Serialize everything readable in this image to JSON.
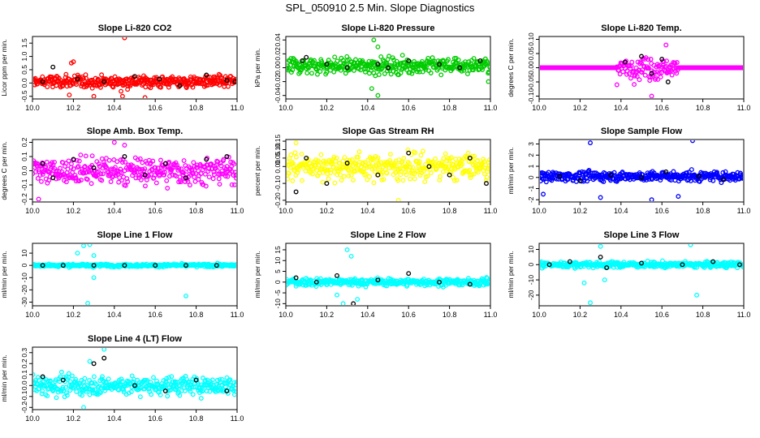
{
  "page": {
    "title": "SPL_050910  2.5 Min. Slope Diagnostics"
  },
  "chart_data": [
    {
      "type": "scatter",
      "title": "Slope Li-820 CO2",
      "ylabel": "Licor ppm per min.",
      "xlabel": "",
      "xlim": [
        10.0,
        11.0
      ],
      "ylim": [
        -0.6,
        1.75
      ],
      "xticks": [
        "10.0",
        "10.2",
        "10.4",
        "10.6",
        "10.8",
        "11.0"
      ],
      "yticks": [
        "-0.5",
        "0.0",
        "0.5",
        "1.0",
        "1.5"
      ],
      "ytick_values": [
        -0.5,
        0,
        0.5,
        1.0,
        1.5
      ],
      "color": "#ff0000",
      "spread": 0.25,
      "center": 0.05,
      "outliers": [
        [
          10.19,
          0.75
        ],
        [
          10.2,
          0.8
        ],
        [
          10.45,
          1.7
        ],
        [
          10.44,
          -0.5
        ],
        [
          10.55,
          -0.55
        ],
        [
          10.18,
          -0.45
        ],
        [
          10.3,
          -0.5
        ]
      ],
      "black_points": [
        [
          10.05,
          0.05
        ],
        [
          10.1,
          0.6
        ],
        [
          10.22,
          0.15
        ],
        [
          10.35,
          0.05
        ],
        [
          10.5,
          0.25
        ],
        [
          10.62,
          0.15
        ],
        [
          10.72,
          -0.1
        ],
        [
          10.85,
          0.3
        ],
        [
          10.95,
          0.1
        ],
        [
          10.99,
          0.05
        ]
      ]
    },
    {
      "type": "scatter",
      "title": "Slope Li-820 Pressure",
      "ylabel": "kPa per min.",
      "xlabel": "",
      "xlim": [
        10.0,
        11.0
      ],
      "ylim": [
        -0.045,
        0.045
      ],
      "xticks": [
        "10.0",
        "10.2",
        "10.4",
        "10.6",
        "10.8",
        "11.0"
      ],
      "yticks": [
        "-0.04",
        "-0.02",
        "0.00",
        "0.02",
        "0.04"
      ],
      "ytick_values": [
        -0.04,
        -0.02,
        0,
        0.02,
        0.04
      ],
      "color": "#00cc00",
      "spread": 0.012,
      "center": 0.003,
      "outliers": [
        [
          10.43,
          0.04
        ],
        [
          10.45,
          -0.04
        ],
        [
          10.45,
          0.03
        ],
        [
          10.42,
          -0.03
        ],
        [
          10.99,
          -0.02
        ]
      ],
      "black_points": [
        [
          10.08,
          0.01
        ],
        [
          10.1,
          0.015
        ],
        [
          10.2,
          0.005
        ],
        [
          10.3,
          0.0
        ],
        [
          10.45,
          0.005
        ],
        [
          10.5,
          0.0
        ],
        [
          10.6,
          0.01
        ],
        [
          10.75,
          0.005
        ],
        [
          10.85,
          0.0
        ],
        [
          10.95,
          0.01
        ]
      ]
    },
    {
      "type": "scatter",
      "title": "Slope Li-820 Temp.",
      "ylabel": "degrees C per min.",
      "xlabel": "",
      "xlim": [
        10.0,
        11.0
      ],
      "ylim": [
        -0.11,
        0.11
      ],
      "xticks": [
        "10.0",
        "10.2",
        "10.4",
        "10.6",
        "10.8",
        "11.0"
      ],
      "yticks": [
        "-0.10",
        "-0.05",
        "0.00",
        "0.05",
        "0.10"
      ],
      "ytick_values": [
        -0.1,
        -0.05,
        0,
        0.05,
        0.1
      ],
      "color": "#ff00ff",
      "spread": 0.0,
      "center": 0.0,
      "burst": [
        10.38,
        10.68,
        0.05
      ],
      "outliers": [
        [
          10.55,
          -0.1
        ],
        [
          10.62,
          0.08
        ],
        [
          10.38,
          -0.06
        ]
      ],
      "black_points": [
        [
          10.5,
          0.04
        ],
        [
          10.55,
          -0.02
        ],
        [
          10.6,
          0.03
        ],
        [
          10.63,
          -0.05
        ],
        [
          10.42,
          0.02
        ]
      ]
    },
    {
      "type": "scatter",
      "title": "Slope Amb. Box Temp.",
      "ylabel": "degrees C per min.",
      "xlabel": "",
      "xlim": [
        10.0,
        11.0
      ],
      "ylim": [
        -0.22,
        0.22
      ],
      "xticks": [
        "10.0",
        "10.2",
        "10.4",
        "10.6",
        "10.8",
        "11.0"
      ],
      "yticks": [
        "-0.2",
        "-0.1",
        "0.0",
        "0.1",
        "0.2"
      ],
      "ytick_values": [
        -0.2,
        -0.1,
        0,
        0.1,
        0.2
      ],
      "color": "#ff00ff",
      "spread": 0.1,
      "center": 0.0,
      "outliers": [
        [
          10.4,
          0.2
        ],
        [
          10.03,
          -0.2
        ],
        [
          10.45,
          0.18
        ]
      ],
      "black_points": [
        [
          10.05,
          0.05
        ],
        [
          10.1,
          -0.05
        ],
        [
          10.2,
          0.08
        ],
        [
          10.3,
          0.02
        ],
        [
          10.45,
          0.1
        ],
        [
          10.55,
          -0.03
        ],
        [
          10.65,
          0.05
        ],
        [
          10.75,
          -0.05
        ],
        [
          10.85,
          0.08
        ],
        [
          10.95,
          0.1
        ]
      ]
    },
    {
      "type": "scatter",
      "title": "Slope Gas Stream RH",
      "ylabel": "percent per min.",
      "xlabel": "",
      "xlim": [
        10.0,
        11.0
      ],
      "ylim": [
        -0.21,
        0.16
      ],
      "xticks": [
        "10.0",
        "10.2",
        "10.4",
        "10.6",
        "10.8",
        "11.0"
      ],
      "yticks": [
        "-0.20",
        "-0.10",
        "0.00",
        "0.05",
        "0.10",
        "0.15"
      ],
      "ytick_values": [
        -0.2,
        -0.1,
        0,
        0.05,
        0.1,
        0.15
      ],
      "color": "#ffff00",
      "spread": 0.08,
      "center": 0.0,
      "outliers": [
        [
          10.55,
          -0.2
        ],
        [
          10.05,
          0.14
        ]
      ],
      "black_points": [
        [
          10.05,
          -0.15
        ],
        [
          10.1,
          0.05
        ],
        [
          10.2,
          -0.1
        ],
        [
          10.3,
          0.02
        ],
        [
          10.45,
          -0.05
        ],
        [
          10.6,
          0.08
        ],
        [
          10.7,
          0.0
        ],
        [
          10.8,
          -0.05
        ],
        [
          10.9,
          0.05
        ],
        [
          10.98,
          -0.1
        ]
      ]
    },
    {
      "type": "scatter",
      "title": "Slope Sample Flow",
      "ylabel": "ml/min per min.",
      "xlabel": "",
      "xlim": [
        10.0,
        11.0
      ],
      "ylim": [
        -2.2,
        3.4
      ],
      "xticks": [
        "10.0",
        "10.2",
        "10.4",
        "10.6",
        "10.8",
        "11.0"
      ],
      "yticks": [
        "-2",
        "-1",
        "0",
        "1",
        "2",
        "3"
      ],
      "ytick_values": [
        -2,
        -1,
        0,
        1,
        2,
        3
      ],
      "color": "#0000ff",
      "spread": 0.45,
      "center": 0.1,
      "outliers": [
        [
          10.25,
          3.1
        ],
        [
          10.75,
          3.3
        ],
        [
          10.3,
          -1.8
        ],
        [
          10.55,
          -2.0
        ],
        [
          10.02,
          -1.5
        ],
        [
          10.68,
          -1.7
        ]
      ],
      "black_points": [
        [
          10.1,
          0.1
        ],
        [
          10.2,
          -0.3
        ],
        [
          10.35,
          0.2
        ],
        [
          10.5,
          0.0
        ],
        [
          10.62,
          0.5
        ],
        [
          10.78,
          0.1
        ],
        [
          10.9,
          -0.2
        ]
      ]
    },
    {
      "type": "scatter",
      "title": "Slope Line 1 Flow",
      "ylabel": "ml/min per min.",
      "xlabel": "",
      "xlim": [
        10.0,
        11.0
      ],
      "ylim": [
        -33,
        18
      ],
      "xticks": [
        "10.0",
        "10.2",
        "10.4",
        "10.6",
        "10.8",
        "11.0"
      ],
      "yticks": [
        "-30",
        "-20",
        "-10",
        "0",
        "10"
      ],
      "ytick_values": [
        -30,
        -20,
        -10,
        0,
        10
      ],
      "color": "#00ffff",
      "spread": 1.2,
      "center": 0.0,
      "outliers": [
        [
          10.25,
          16
        ],
        [
          10.28,
          17
        ],
        [
          10.3,
          -10
        ],
        [
          10.27,
          -31
        ],
        [
          10.75,
          -25
        ],
        [
          10.22,
          10
        ],
        [
          10.3,
          8
        ]
      ],
      "black_points": [
        [
          10.05,
          0
        ],
        [
          10.15,
          0
        ],
        [
          10.3,
          0
        ],
        [
          10.45,
          0
        ],
        [
          10.6,
          0
        ],
        [
          10.75,
          0
        ],
        [
          10.9,
          0
        ]
      ]
    },
    {
      "type": "scatter",
      "title": "Slope Line 2 Flow",
      "ylabel": "ml/min per min.",
      "xlabel": "",
      "xlim": [
        10.0,
        11.0
      ],
      "ylim": [
        -11,
        18
      ],
      "xticks": [
        "10.0",
        "10.2",
        "10.4",
        "10.6",
        "10.8",
        "11.0"
      ],
      "yticks": [
        "-10",
        "-5",
        "0",
        "5",
        "10",
        "15"
      ],
      "ytick_values": [
        -10,
        -5,
        0,
        5,
        10,
        15
      ],
      "color": "#00ffff",
      "spread": 1.8,
      "center": 0.0,
      "outliers": [
        [
          10.28,
          -10
        ],
        [
          10.3,
          15
        ],
        [
          10.35,
          -8
        ],
        [
          10.32,
          12
        ],
        [
          10.25,
          -6
        ]
      ],
      "black_points": [
        [
          10.05,
          2
        ],
        [
          10.15,
          0
        ],
        [
          10.25,
          3
        ],
        [
          10.33,
          -10
        ],
        [
          10.45,
          1
        ],
        [
          10.6,
          4
        ],
        [
          10.75,
          0
        ],
        [
          10.9,
          -1
        ]
      ]
    },
    {
      "type": "scatter",
      "title": "Slope Line 3 Flow",
      "ylabel": "ml/min per min.",
      "xlabel": "",
      "xlim": [
        10.0,
        11.0
      ],
      "ylim": [
        -27,
        14
      ],
      "xticks": [
        "10.0",
        "10.2",
        "10.4",
        "10.6",
        "10.8",
        "11.0"
      ],
      "yticks": [
        "-20",
        "-10",
        "0",
        "10"
      ],
      "ytick_values": [
        -20,
        -10,
        0,
        10
      ],
      "color": "#00ffff",
      "spread": 2.0,
      "center": 0.0,
      "outliers": [
        [
          10.25,
          -25
        ],
        [
          10.3,
          12
        ],
        [
          10.32,
          -10
        ],
        [
          10.74,
          13
        ],
        [
          10.77,
          -20
        ],
        [
          10.22,
          -12
        ]
      ],
      "black_points": [
        [
          10.05,
          0
        ],
        [
          10.15,
          2
        ],
        [
          10.3,
          5
        ],
        [
          10.33,
          -2
        ],
        [
          10.5,
          1
        ],
        [
          10.7,
          0
        ],
        [
          10.85,
          2
        ],
        [
          10.98,
          0
        ]
      ]
    },
    {
      "type": "scatter",
      "title": "Slope Line 4 (LT) Flow",
      "ylabel": "ml/min per min.",
      "xlabel": "",
      "xlim": [
        10.0,
        11.0
      ],
      "ylim": [
        -0.22,
        0.35
      ],
      "xticks": [
        "10.0",
        "10.2",
        "10.4",
        "10.6",
        "10.8",
        "11.0"
      ],
      "yticks": [
        "-0.2",
        "-0.1",
        "0.0",
        "0.1",
        "0.2",
        "0.3"
      ],
      "ytick_values": [
        -0.2,
        -0.1,
        0,
        0.1,
        0.2,
        0.3
      ],
      "color": "#00ffff",
      "spread": 0.09,
      "center": 0.0,
      "outliers": [
        [
          10.35,
          0.33
        ],
        [
          10.28,
          0.22
        ],
        [
          10.25,
          -0.2
        ]
      ],
      "black_points": [
        [
          10.05,
          0.08
        ],
        [
          10.15,
          0.05
        ],
        [
          10.3,
          0.2
        ],
        [
          10.35,
          0.25
        ],
        [
          10.5,
          0.0
        ],
        [
          10.65,
          -0.05
        ],
        [
          10.8,
          0.05
        ],
        [
          10.95,
          -0.05
        ]
      ]
    }
  ]
}
